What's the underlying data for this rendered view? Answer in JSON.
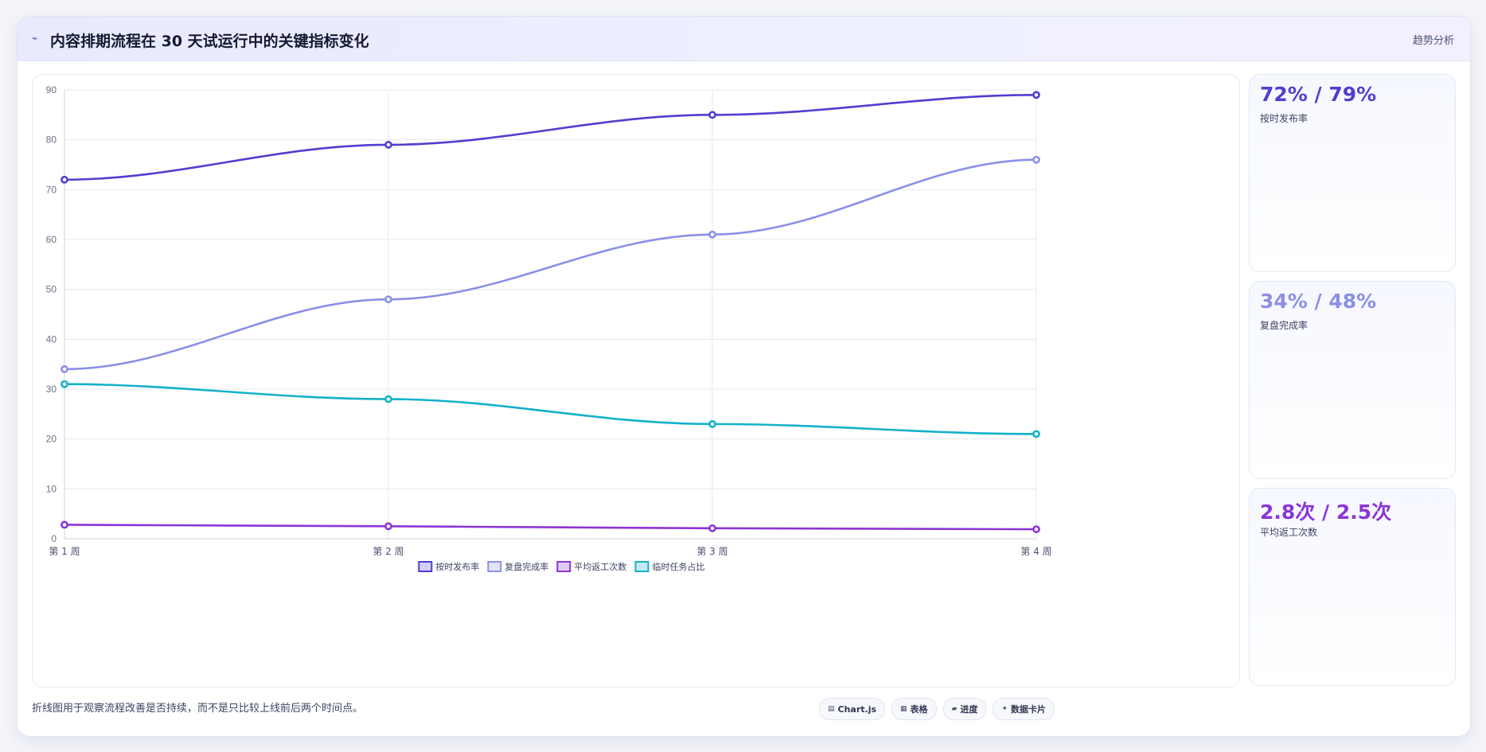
{
  "header": {
    "title_icon": "trend-line-icon",
    "title": "内容排期流程在 30 天试运行中的关键指标变化",
    "badge": "趋势分析"
  },
  "chart_data": {
    "type": "line",
    "categories": [
      "第 1 周",
      "第 2 周",
      "第 3 周",
      "第 4 周"
    ],
    "series": [
      {
        "name": "按时发布率",
        "values": [
          72,
          79,
          85,
          89
        ],
        "color": "#4f3fd1"
      },
      {
        "name": "复盘完成率",
        "values": [
          34,
          48,
          61,
          76
        ],
        "color": "#8a90e6"
      },
      {
        "name": "平均返工次数",
        "values": [
          2.8,
          2.5,
          2.1,
          1.9
        ],
        "color": "#8b35d6"
      },
      {
        "name": "临时任务占比",
        "values": [
          31,
          28,
          23,
          21
        ],
        "color": "#14b1c9"
      }
    ],
    "ylim": [
      0,
      90
    ],
    "yticks": [
      0,
      10,
      20,
      30,
      40,
      50,
      60,
      70,
      80,
      90
    ],
    "grid": true,
    "legend_position": "bottom"
  },
  "stats": [
    {
      "value": "72% / 79%",
      "label": "按时发布率",
      "color": "#4f3fd1"
    },
    {
      "value": "34% / 48%",
      "label": "复盘完成率",
      "color": "#8a90e6"
    },
    {
      "value": "2.8次 / 2.5次",
      "label": "平均返工次数",
      "color": "#8b35d6"
    }
  ],
  "footer": {
    "note": "折线图用于观察流程改善是否持续，而不是只比较上线前后两个时间点。",
    "chips": [
      {
        "icon": "database-icon",
        "label": "Chart.js"
      },
      {
        "icon": "table-icon",
        "label": "表格"
      },
      {
        "icon": "progress-icon",
        "label": "进度"
      },
      {
        "icon": "sparkle-icon",
        "label": "数据卡片"
      }
    ]
  }
}
